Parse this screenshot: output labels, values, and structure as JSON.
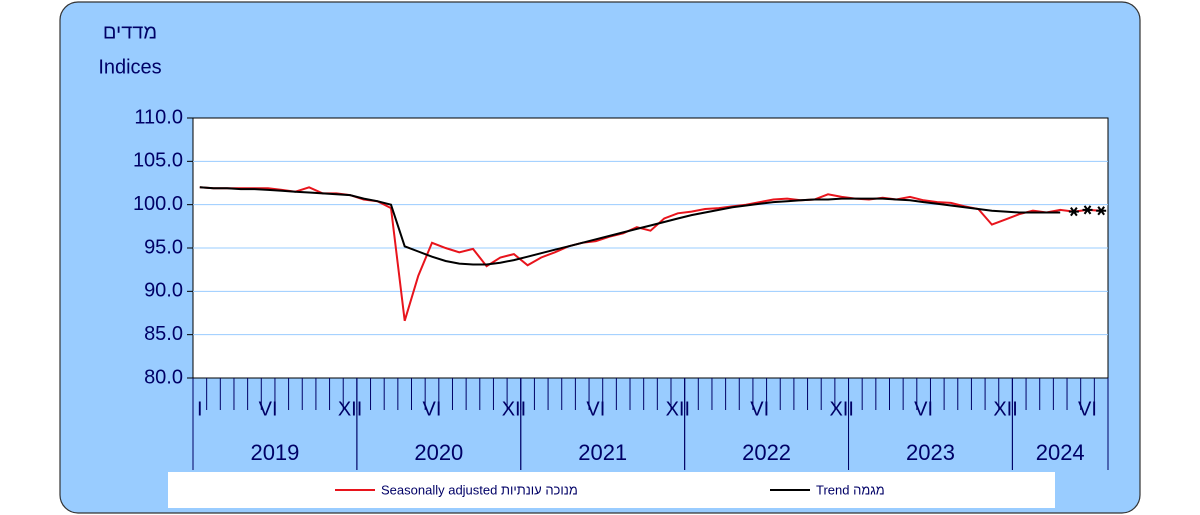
{
  "chart_data": {
    "type": "line",
    "y_title_he": "מדדים",
    "y_title": "Indices",
    "categories": [
      "I",
      null,
      null,
      null,
      null,
      "VI",
      null,
      null,
      null,
      null,
      null,
      "XII",
      null,
      null,
      null,
      null,
      null,
      "VI",
      null,
      null,
      null,
      null,
      null,
      "XII",
      null,
      null,
      null,
      null,
      null,
      "VI",
      null,
      null,
      null,
      null,
      null,
      "XII",
      null,
      null,
      null,
      null,
      null,
      "VI",
      null,
      null,
      null,
      null,
      null,
      "XII",
      null,
      null,
      null,
      null,
      null,
      "VI",
      null,
      null,
      null,
      null,
      null,
      "XII",
      null,
      null,
      null,
      null,
      null,
      "VI",
      null
    ],
    "years": [
      "2019",
      "2020",
      "2021",
      "2022",
      "2023",
      "2024"
    ],
    "ylim": [
      80,
      110
    ],
    "yticks": [
      {
        "value": 80,
        "label": "80.0"
      },
      {
        "value": 85,
        "label": "85.0"
      },
      {
        "value": 90,
        "label": "90.0"
      },
      {
        "value": 95,
        "label": "95.0"
      },
      {
        "value": 100,
        "label": "100.0"
      },
      {
        "value": 105,
        "label": "105.0"
      },
      {
        "value": 110,
        "label": "110.0"
      }
    ],
    "grid": true,
    "series": [
      {
        "name": "Seasonally adjusted  מנוכה עונתיות",
        "color": "#e8141c",
        "values": [
          102.0,
          101.9,
          101.9,
          101.9,
          101.9,
          101.9,
          101.7,
          101.5,
          102.0,
          101.3,
          101.3,
          101.1,
          100.6,
          100.4,
          99.6,
          86.6,
          91.8,
          95.6,
          95.0,
          94.5,
          94.9,
          92.9,
          93.9,
          94.3,
          93.0,
          93.9,
          94.5,
          95.2,
          95.6,
          95.8,
          96.3,
          96.7,
          97.4,
          97.0,
          98.4,
          99.0,
          99.2,
          99.5,
          99.6,
          99.8,
          100.0,
          100.3,
          100.6,
          100.7,
          100.5,
          100.6,
          101.2,
          100.9,
          100.7,
          100.6,
          100.8,
          100.6,
          100.9,
          100.5,
          100.3,
          100.2,
          99.8,
          99.5,
          97.7,
          98.3,
          98.9,
          99.3,
          99.1,
          99.4,
          99.2,
          99.4,
          99.3
        ],
        "markers": [
          null,
          null,
          null,
          null,
          null,
          null,
          null,
          null,
          null,
          null,
          null,
          null,
          null,
          null,
          null,
          null,
          null,
          null,
          null,
          null,
          null,
          null,
          null,
          null,
          null,
          null,
          null,
          null,
          null,
          null,
          null,
          null,
          null,
          null,
          null,
          null,
          null,
          null,
          null,
          null,
          null,
          null,
          null,
          null,
          null,
          null,
          null,
          null,
          null,
          null,
          null,
          null,
          null,
          null,
          null,
          null,
          null,
          null,
          null,
          null,
          null,
          null,
          null,
          null,
          "asterisk",
          "asterisk",
          "asterisk"
        ]
      },
      {
        "name": "Trend  מגמה",
        "color": "#000000",
        "values": [
          102.0,
          101.9,
          101.9,
          101.8,
          101.8,
          101.7,
          101.6,
          101.5,
          101.4,
          101.3,
          101.2,
          101.1,
          100.7,
          100.4,
          100.0,
          95.2,
          94.6,
          94.0,
          93.5,
          93.2,
          93.1,
          93.1,
          93.3,
          93.6,
          94.0,
          94.4,
          94.8,
          95.2,
          95.6,
          96.0,
          96.4,
          96.8,
          97.2,
          97.6,
          98.0,
          98.4,
          98.8,
          99.1,
          99.4,
          99.7,
          99.9,
          100.1,
          100.3,
          100.4,
          100.5,
          100.6,
          100.6,
          100.7,
          100.7,
          100.7,
          100.7,
          100.6,
          100.5,
          100.3,
          100.1,
          99.9,
          99.7,
          99.5,
          99.3,
          99.2,
          99.1,
          99.1,
          99.1,
          99.1,
          null,
          null,
          null
        ]
      }
    ]
  }
}
